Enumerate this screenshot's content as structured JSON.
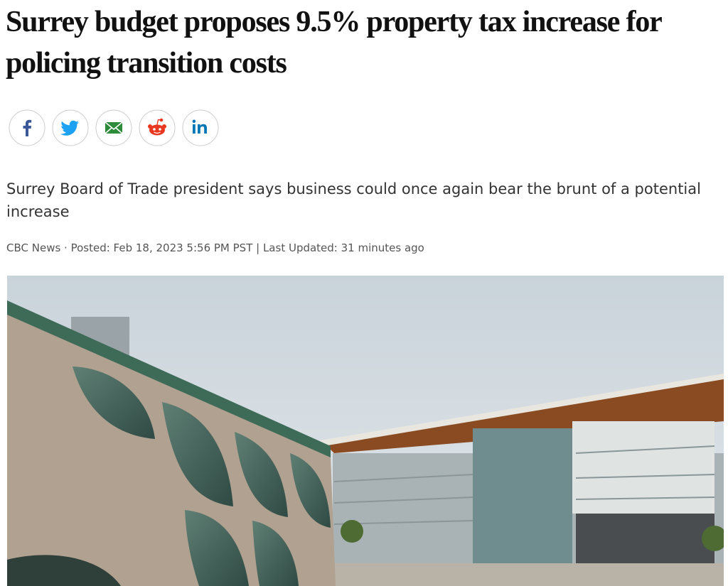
{
  "article": {
    "headline": "Surrey budget proposes 9.5% property tax increase for policing transition costs",
    "dek": "Surrey Board of Trade president says business could once again bear the brunt of a potential increase",
    "byline": "CBC News · Posted: Feb 18, 2023 5:56 PM PST | Last Updated: 31 minutes ago"
  }
}
